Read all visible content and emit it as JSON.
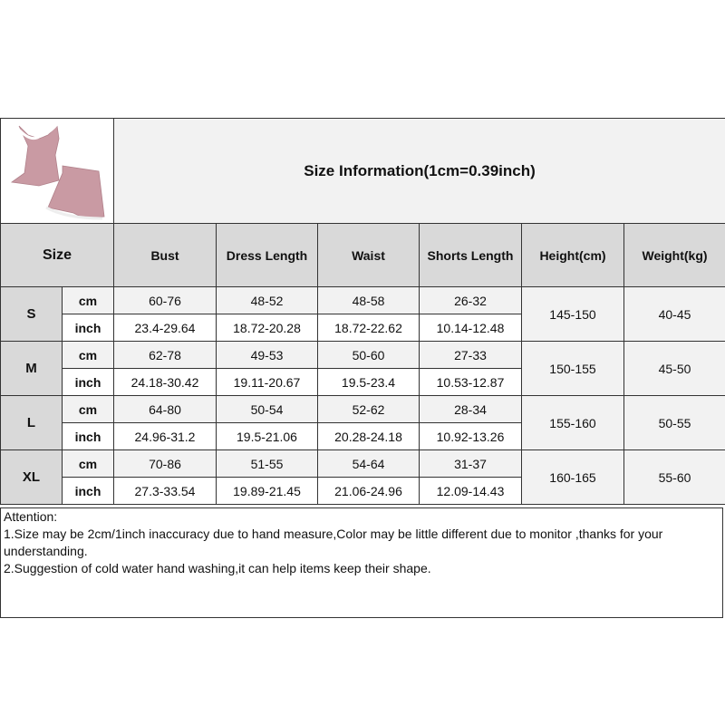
{
  "title": "Size Information(1cm=0.39inch)",
  "product_image": "pink satin camisole and shorts pajama set with white lace trim",
  "headers": [
    "Size",
    "Bust",
    "Dress Length",
    "Waist",
    "Shorts Length",
    "Height(cm)",
    "Weight(kg)"
  ],
  "units": {
    "cm": "cm",
    "inch": "inch"
  },
  "rows": [
    {
      "size": "S",
      "cm": [
        "60-76",
        "48-52",
        "48-58",
        "26-32"
      ],
      "inch": [
        "23.4-29.64",
        "18.72-20.28",
        "18.72-22.62",
        "10.14-12.48"
      ],
      "height": "145-150",
      "weight": "40-45"
    },
    {
      "size": "M",
      "cm": [
        "62-78",
        "49-53",
        "50-60",
        "27-33"
      ],
      "inch": [
        "24.18-30.42",
        "19.11-20.67",
        "19.5-23.4",
        "10.53-12.87"
      ],
      "height": "150-155",
      "weight": "45-50"
    },
    {
      "size": "L",
      "cm": [
        "64-80",
        "50-54",
        "52-62",
        "28-34"
      ],
      "inch": [
        "24.96-31.2",
        "19.5-21.06",
        "20.28-24.18",
        "10.92-13.26"
      ],
      "height": "155-160",
      "weight": "50-55"
    },
    {
      "size": "XL",
      "cm": [
        "70-86",
        "51-55",
        "54-64",
        "31-37"
      ],
      "inch": [
        "27.3-33.54",
        "19.89-21.45",
        "21.06-24.96",
        "12.09-14.43"
      ],
      "height": "160-165",
      "weight": "55-60"
    }
  ],
  "attention": {
    "heading": "Attention:",
    "note1": "1.Size may be 2cm/1inch inaccuracy due to hand measure,Color may be little different due to monitor ,thanks for your understanding.",
    "note2": "2.Suggestion of cold water hand washing,it can help items keep their shape."
  },
  "colors": {
    "header_bg": "#d9d9d9",
    "cm_row_bg": "#f2f2f2",
    "inch_row_bg": "#ffffff",
    "product": "#c99aa3"
  }
}
